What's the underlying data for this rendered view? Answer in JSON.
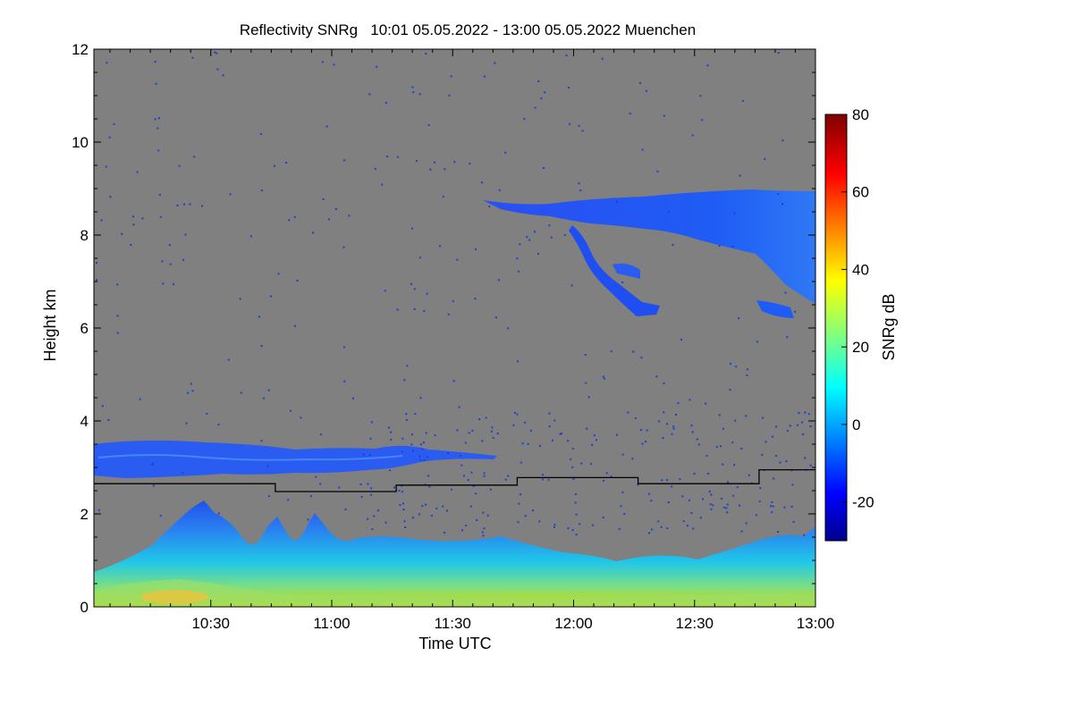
{
  "chart_data": {
    "type": "heatmap",
    "title": "Reflectivity SNRg   10:01 05.05.2022 - 13:00 05.05.2022 Muenchen",
    "xlabel": "Time UTC",
    "ylabel": "Height km",
    "x_range": [
      "10:01",
      "13:00"
    ],
    "xticks": [
      "10:30",
      "11:00",
      "11:30",
      "12:00",
      "12:30",
      "13:00"
    ],
    "ylim": [
      0,
      12
    ],
    "yticks": [
      0,
      2,
      4,
      6,
      8,
      10,
      12
    ],
    "colorbar": {
      "label": "SNRg dB",
      "range": [
        -30,
        80
      ],
      "ticks": [
        -20,
        0,
        20,
        40,
        60,
        80
      ]
    },
    "background_color": "#808080",
    "echo_features": [
      {
        "t_start": "10:01",
        "t_end": "11:45",
        "h_bottom": 2.8,
        "h_top": 3.5,
        "snr_db": -15
      },
      {
        "t_start": "11:45",
        "t_end": "13:00",
        "h_bottom": 6.3,
        "h_top": 8.8,
        "snr_db": -12
      },
      {
        "t_start": "10:01",
        "t_end": "13:00",
        "h_bottom": 0.0,
        "h_top": 2.2,
        "snr_db": 5
      }
    ],
    "boundary_layer_line": {
      "name": "",
      "points": [
        [
          "10:01",
          2.65
        ],
        [
          "10:46",
          2.65
        ],
        [
          "10:46",
          2.48
        ],
        [
          "11:16",
          2.48
        ],
        [
          "11:16",
          2.62
        ],
        [
          "11:46",
          2.62
        ],
        [
          "11:46",
          2.78
        ],
        [
          "12:16",
          2.78
        ],
        [
          "12:16",
          2.65
        ],
        [
          "12:46",
          2.65
        ],
        [
          "12:46",
          2.95
        ],
        [
          "13:00",
          2.95
        ]
      ]
    }
  }
}
